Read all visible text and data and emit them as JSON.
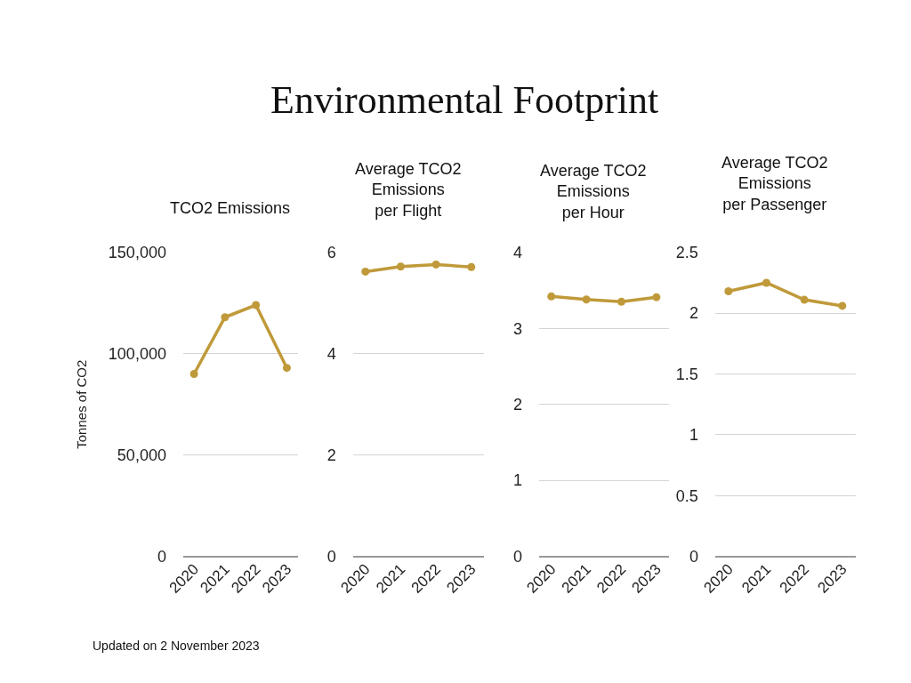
{
  "chart_data": [
    {
      "type": "line",
      "title": "TCO2 Emissions",
      "ylabel": "Tonnes of CO2",
      "categories": [
        "2020",
        "2021",
        "2022",
        "2023"
      ],
      "series": [
        {
          "color": "#c09a3a",
          "values": [
            90000,
            118000,
            124000,
            93000
          ]
        }
      ],
      "ylim": [
        0,
        150000
      ],
      "yticks": [
        {
          "value": 0,
          "label": "0"
        },
        {
          "value": 50000,
          "label": "50,000"
        },
        {
          "value": 100000,
          "label": "100,000"
        },
        {
          "value": 150000,
          "label": "150,000"
        }
      ],
      "grid": "y",
      "marker": "circle",
      "line_style": "solid",
      "annotations": [
        "Environmental Footprint",
        "Updated on 2 November 2023"
      ]
    },
    {
      "type": "line",
      "title": "Average TCO2\nEmissions\nper Flight",
      "categories": [
        "2020",
        "2021",
        "2022",
        "2023"
      ],
      "series": [
        {
          "color": "#c09a3a",
          "values": [
            5.62,
            5.72,
            5.76,
            5.71
          ]
        }
      ],
      "ylim": [
        0,
        6
      ],
      "yticks": [
        0,
        2,
        4,
        6
      ],
      "grid": "y",
      "marker": "circle",
      "line_style": "solid"
    },
    {
      "type": "line",
      "title": "Average TCO2\nEmissions\nper Hour",
      "categories": [
        "2020",
        "2021",
        "2022",
        "2023"
      ],
      "series": [
        {
          "color": "#c09a3a",
          "values": [
            3.42,
            3.38,
            3.35,
            3.41
          ]
        }
      ],
      "ylim": [
        0,
        4
      ],
      "yticks": [
        0,
        1,
        2,
        3,
        4
      ],
      "grid": "y",
      "marker": "circle",
      "line_style": "solid"
    },
    {
      "type": "line",
      "title": "Average TCO2\nEmissions\nper Passenger",
      "categories": [
        "2020",
        "2021",
        "2022",
        "2023"
      ],
      "series": [
        {
          "color": "#c09a3a",
          "values": [
            2.18,
            2.25,
            2.11,
            2.06
          ]
        }
      ],
      "ylim": [
        0,
        2.5
      ],
      "yticks": [
        0,
        0.5,
        1,
        1.5,
        2,
        2.5
      ],
      "grid": "y",
      "marker": "circle",
      "line_style": "solid"
    }
  ]
}
